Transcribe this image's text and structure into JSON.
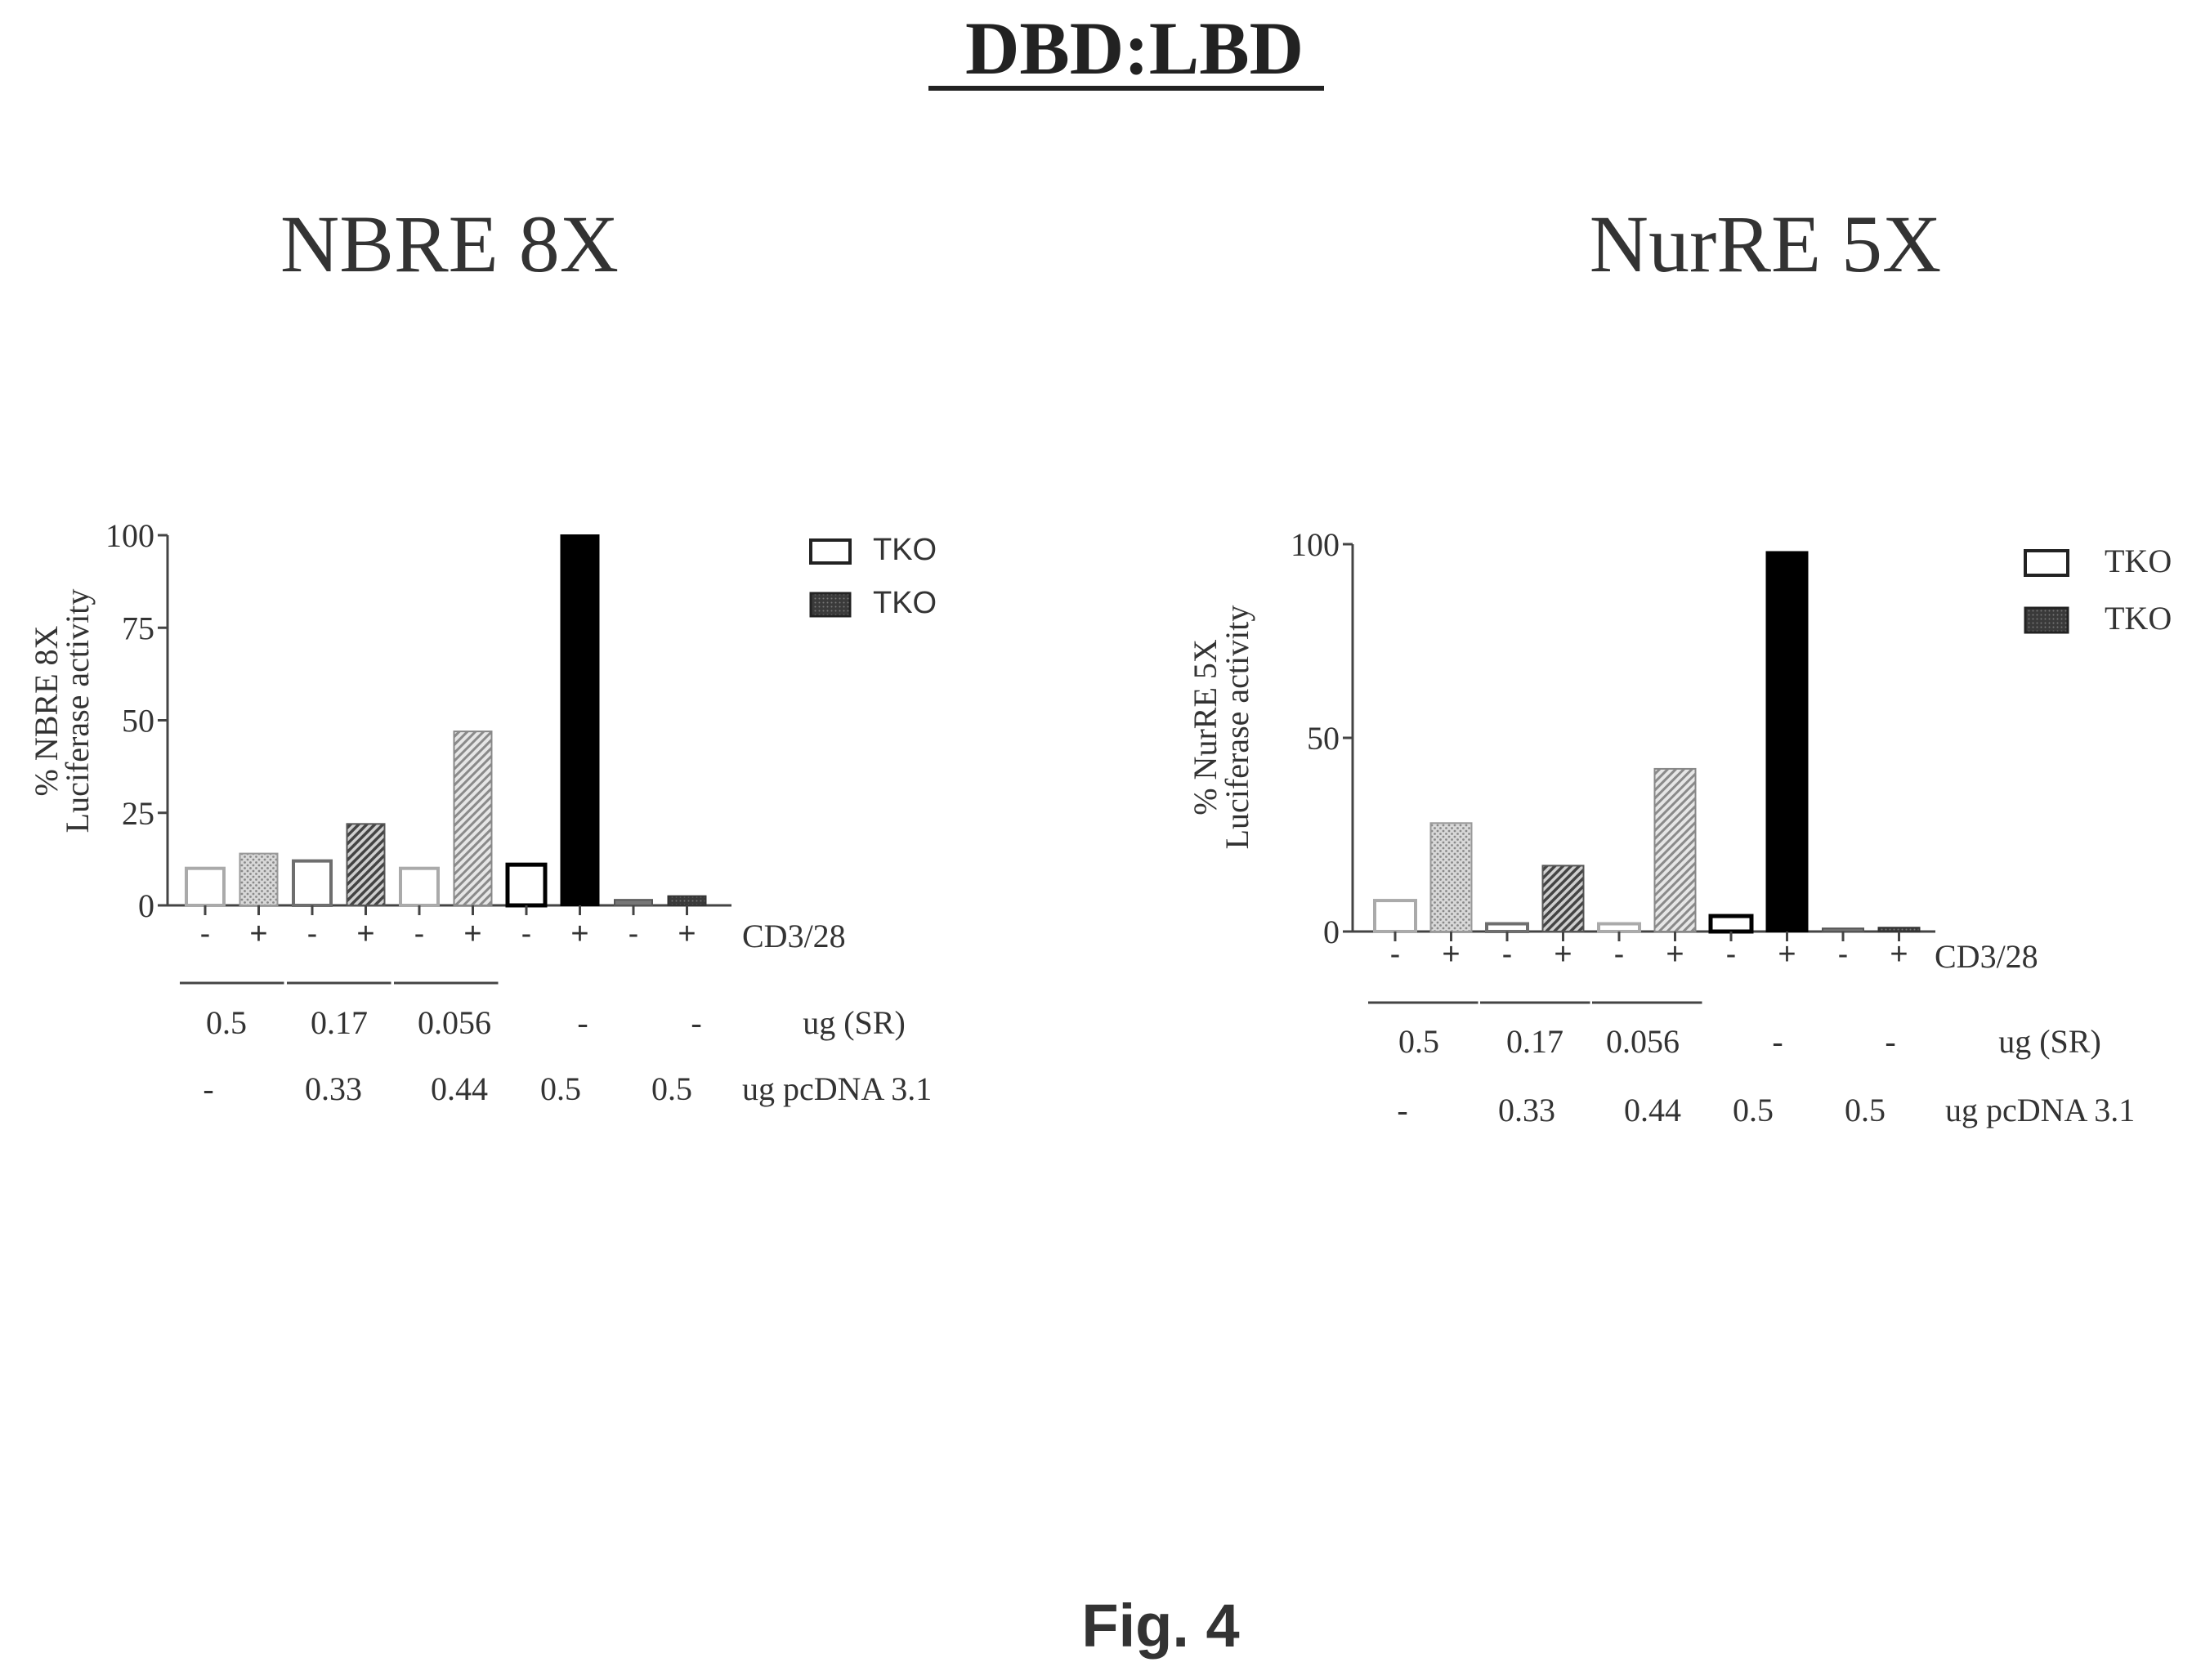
{
  "figure": {
    "title": "DBD:LBD",
    "caption": "Fig. 4"
  },
  "colors": {
    "ink": "#111111",
    "light_gray": "#aaaaaa",
    "mid_gray": "#6e6e6e",
    "dark_gray": "#3a3a3a",
    "black": "#000000"
  },
  "chart_data": [
    {
      "type": "bar",
      "title": "NBRE 8X",
      "ylabel_line1": "% NBRE 8X",
      "ylabel_line2": "Luciferase activity",
      "ylim": [
        0,
        100
      ],
      "yticks": [
        "0",
        "25",
        "50",
        "75",
        "100"
      ],
      "ytick_values": [
        0,
        25,
        50,
        75,
        100
      ],
      "categories": [
        "-",
        "+",
        "-",
        "+",
        "-",
        "+",
        "-",
        "+",
        "-",
        "+"
      ],
      "values": [
        10,
        14,
        12,
        22,
        10,
        47,
        11,
        100,
        1.5,
        2.5
      ],
      "bar_styles": [
        "open-light",
        "dotted",
        "open-mid",
        "hatched",
        "open-light",
        "hatched-light",
        "open-black",
        "solid",
        "solid-gray",
        "solid-dark"
      ],
      "row_label_cd": "CD3/28",
      "sr_values": [
        "0.5",
        "0.17",
        "0.056",
        "-",
        "-"
      ],
      "sr_label": "ug (SR)",
      "pcdna_values": [
        "-",
        "0.33",
        "0.44",
        "0.5",
        "0.5"
      ],
      "pcdna_label": "ug  pcDNA 3.1",
      "legend": [
        {
          "label": "TKO",
          "style": "open"
        },
        {
          "label": "TKO",
          "style": "filled"
        }
      ]
    },
    {
      "type": "bar",
      "title": "NurRE 5X",
      "ylabel_line1": "% NurRE 5X",
      "ylabel_line2": "Luciferase activity",
      "ylim": [
        0,
        100
      ],
      "yticks": [
        "0",
        "50",
        "100"
      ],
      "ytick_values": [
        0,
        50,
        100
      ],
      "categories": [
        "-",
        "+",
        "-",
        "+",
        "-",
        "+",
        "-",
        "+",
        "-",
        "+"
      ],
      "values": [
        8,
        28,
        2,
        17,
        2,
        42,
        4,
        98,
        0.8,
        1
      ],
      "bar_styles": [
        "open-light",
        "dotted",
        "open-mid",
        "hatched",
        "open-light",
        "hatched-light",
        "open-black",
        "solid",
        "solid-gray",
        "solid-dark"
      ],
      "row_label_cd": "CD3/28",
      "sr_values": [
        "0.5",
        "0.17",
        "0.056",
        "-",
        "-"
      ],
      "sr_label": "ug (SR)",
      "pcdna_values": [
        "-",
        "0.33",
        "0.44",
        "0.5",
        "0.5"
      ],
      "pcdna_label": "ug pcDNA 3.1",
      "legend": [
        {
          "label": "TKO",
          "style": "open"
        },
        {
          "label": "TKO",
          "style": "filled"
        }
      ]
    }
  ]
}
